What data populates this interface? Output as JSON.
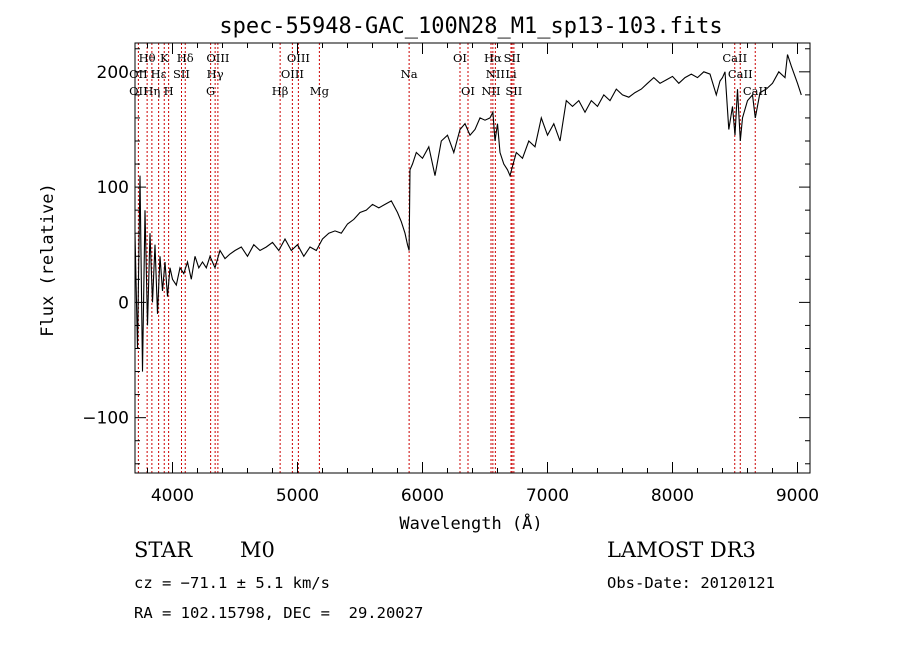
{
  "chart_data": {
    "type": "line",
    "title": "spec-55948-GAC_100N28_M1_sp13-103.fits",
    "xlabel": "Wavelength (Å)",
    "ylabel": "Flux (relative)",
    "xlim": [
      3700,
      9100
    ],
    "ylim": [
      -148,
      225
    ],
    "xticks": [
      4000,
      5000,
      6000,
      7000,
      8000,
      9000
    ],
    "xtick_labels": [
      "4000",
      "5000",
      "6000",
      "7000",
      "8000",
      "9000"
    ],
    "yticks": [
      -100,
      0,
      100,
      200
    ],
    "ytick_labels": [
      "−100",
      "0",
      "100",
      "200"
    ],
    "series": [
      {
        "name": "flux",
        "x": [
          3700,
          3720,
          3740,
          3760,
          3780,
          3800,
          3820,
          3840,
          3860,
          3880,
          3900,
          3920,
          3940,
          3960,
          3980,
          4000,
          4030,
          4060,
          4090,
          4120,
          4150,
          4180,
          4210,
          4240,
          4270,
          4300,
          4340,
          4380,
          4420,
          4460,
          4500,
          4550,
          4600,
          4650,
          4700,
          4750,
          4800,
          4850,
          4900,
          4950,
          5000,
          5050,
          5100,
          5150,
          5200,
          5250,
          5300,
          5350,
          5400,
          5450,
          5500,
          5550,
          5600,
          5650,
          5700,
          5750,
          5800,
          5830,
          5860,
          5880,
          5893,
          5900,
          5920,
          5950,
          6000,
          6050,
          6100,
          6150,
          6200,
          6250,
          6300,
          6340,
          6380,
          6420,
          6460,
          6500,
          6540,
          6563,
          6580,
          6600,
          6620,
          6650,
          6680,
          6700,
          6720,
          6750,
          6800,
          6850,
          6900,
          6950,
          7000,
          7050,
          7100,
          7150,
          7200,
          7250,
          7300,
          7350,
          7400,
          7450,
          7500,
          7550,
          7600,
          7650,
          7700,
          7750,
          7800,
          7850,
          7900,
          7950,
          8000,
          8050,
          8100,
          8150,
          8200,
          8250,
          8300,
          8350,
          8380,
          8400,
          8420,
          8450,
          8480,
          8500,
          8520,
          8542,
          8560,
          8600,
          8640,
          8662,
          8700,
          8750,
          8800,
          8850,
          8900,
          8920,
          8950,
          9000,
          9030
        ],
        "values": [
          60,
          -40,
          110,
          -60,
          80,
          -20,
          60,
          0,
          50,
          -10,
          40,
          10,
          35,
          5,
          30,
          20,
          15,
          30,
          25,
          35,
          20,
          40,
          30,
          35,
          30,
          40,
          30,
          45,
          38,
          42,
          45,
          48,
          40,
          50,
          45,
          48,
          52,
          45,
          55,
          45,
          50,
          40,
          48,
          45,
          55,
          60,
          62,
          60,
          68,
          72,
          78,
          80,
          85,
          82,
          85,
          88,
          78,
          70,
          60,
          50,
          45,
          115,
          120,
          130,
          125,
          135,
          110,
          140,
          145,
          130,
          150,
          155,
          145,
          150,
          160,
          158,
          160,
          165,
          140,
          155,
          130,
          120,
          115,
          110,
          118,
          130,
          125,
          140,
          135,
          160,
          145,
          155,
          140,
          175,
          170,
          175,
          165,
          175,
          170,
          180,
          175,
          185,
          180,
          178,
          182,
          185,
          190,
          195,
          190,
          193,
          196,
          190,
          195,
          198,
          195,
          200,
          198,
          180,
          192,
          195,
          200,
          150,
          170,
          145,
          185,
          140,
          160,
          175,
          180,
          160,
          182,
          185,
          190,
          200,
          195,
          215,
          205,
          190,
          180
        ]
      }
    ],
    "lines_top": [
      {
        "label": "Hθ",
        "x": 3797
      },
      {
        "label": "K",
        "x": 3934
      },
      {
        "label": "Hδ",
        "x": 4102
      },
      {
        "label": "OIII",
        "x": 4363
      },
      {
        "label": "OIII",
        "x": 5007
      },
      {
        "label": "OI",
        "x": 6300
      },
      {
        "label": "Hα",
        "x": 6563
      },
      {
        "label": "SII",
        "x": 6717
      },
      {
        "label": "CaII",
        "x": 8498
      }
    ],
    "lines_mid": [
      {
        "label": "OII",
        "x": 3727
      },
      {
        "label": "Hε",
        "x": 3889
      },
      {
        "label": "SII",
        "x": 4072
      },
      {
        "label": "Hγ",
        "x": 4341
      },
      {
        "label": "OIII",
        "x": 4959
      },
      {
        "label": "Na",
        "x": 5893
      },
      {
        "label": "NII",
        "x": 6583
      },
      {
        "label": "Li",
        "x": 6708
      },
      {
        "label": "CaII",
        "x": 8542
      }
    ],
    "lines_low": [
      {
        "label": "OII",
        "x": 3727
      },
      {
        "label": "Hη",
        "x": 3835
      },
      {
        "label": "H",
        "x": 3969
      },
      {
        "label": "G",
        "x": 4305
      },
      {
        "label": "Hβ",
        "x": 4861
      },
      {
        "label": "Mg",
        "x": 5175
      },
      {
        "label": "OI",
        "x": 6364
      },
      {
        "label": "NII",
        "x": 6548
      },
      {
        "label": "SII",
        "x": 6731
      },
      {
        "label": "CaII",
        "x": 8662
      }
    ],
    "line_color": "#cc0000"
  },
  "info": {
    "class": "STAR",
    "subclass": "M0",
    "survey": "LAMOST DR3",
    "cz": "cz = −71.1 ± 5.1 km/s",
    "obs_date": "Obs-Date: 20120121",
    "radec": "RA = 102.15798, DEC =  29.20027"
  }
}
